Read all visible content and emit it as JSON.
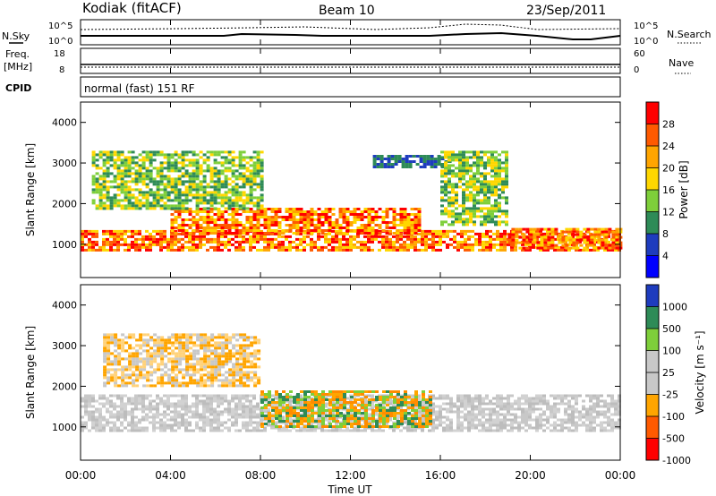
{
  "header": {
    "station": "Kodiak (fitACF)",
    "beam": "Beam 10",
    "date": "23/Sep/2011"
  },
  "noise_panel": {
    "left_label": "N.Sky",
    "right_label": "N.Search",
    "left_ticks": [
      "10^5",
      "10^0"
    ],
    "right_ticks": [
      "10^5",
      "10^0"
    ]
  },
  "freq_panel": {
    "left_label_line1": "Freq.",
    "left_label_line2": "[MHz]",
    "right_label": "Nave",
    "left_ticks": [
      "18",
      "8"
    ],
    "right_ticks": [
      "60",
      "0"
    ]
  },
  "cpid": {
    "label": "CPID",
    "value": "normal (fast) 151 RF"
  },
  "chart_data": [
    {
      "type": "heatmap",
      "name": "Power",
      "ylabel": "Slant Range [km]",
      "ylim": [
        180,
        4500
      ],
      "yticks": [
        1000,
        2000,
        3000,
        4000
      ],
      "colorbar_label": "Power [dB]",
      "colorbar_ticks": [
        "28",
        "24",
        "20",
        "16",
        "12",
        "8",
        "4"
      ],
      "colorbar_colors": [
        "#ff0000",
        "#ff5a00",
        "#ffa500",
        "#ffd700",
        "#7ecf3a",
        "#2e8b57",
        "#1e3cbe",
        "#0000ff"
      ],
      "echo_regions": [
        {
          "t0": 0.0,
          "t1": 24.0,
          "r0": 850,
          "r1": 1350,
          "level": "high"
        },
        {
          "t0": 4.0,
          "t1": 15.0,
          "r0": 1300,
          "r1": 1900,
          "level": "high"
        },
        {
          "t0": 0.5,
          "t1": 8.0,
          "r0": 1900,
          "r1": 3300,
          "level": "medium"
        },
        {
          "t0": 13.0,
          "t1": 16.5,
          "r0": 2900,
          "r1": 3200,
          "level": "low"
        },
        {
          "t0": 16.0,
          "t1": 19.0,
          "r0": 1500,
          "r1": 3300,
          "level": "medium"
        },
        {
          "t0": 19.0,
          "t1": 24.0,
          "r0": 900,
          "r1": 1400,
          "level": "high"
        }
      ]
    },
    {
      "type": "heatmap",
      "name": "Velocity",
      "ylabel": "Slant Range [km]",
      "ylim": [
        180,
        4500
      ],
      "yticks": [
        1000,
        2000,
        3000,
        4000
      ],
      "colorbar_label": "Velocity [m s⁻¹]",
      "colorbar_ticks": [
        "1000",
        "500",
        "100",
        "25",
        "-25",
        "-100",
        "-500",
        "-1000"
      ],
      "colorbar_colors": [
        "#1e3cbe",
        "#2e8b57",
        "#7ecf3a",
        "#c8c8c8",
        "#c8c8c8",
        "#ffa500",
        "#ff5a00",
        "#ff0000"
      ],
      "echo_regions": [
        {
          "t0": 0.0,
          "t1": 24.0,
          "r0": 900,
          "r1": 1800,
          "level": "ground"
        },
        {
          "t0": 8.0,
          "t1": 15.5,
          "r0": 1000,
          "r1": 1900,
          "level": "negative"
        },
        {
          "t0": 1.0,
          "t1": 8.0,
          "r0": 2000,
          "r1": 3300,
          "level": "mixed"
        }
      ]
    }
  ],
  "x_axis": {
    "label": "Time UT",
    "range": [
      0,
      24
    ],
    "ticks": [
      "00:00",
      "04:00",
      "08:00",
      "12:00",
      "16:00",
      "20:00",
      "00:00"
    ]
  }
}
